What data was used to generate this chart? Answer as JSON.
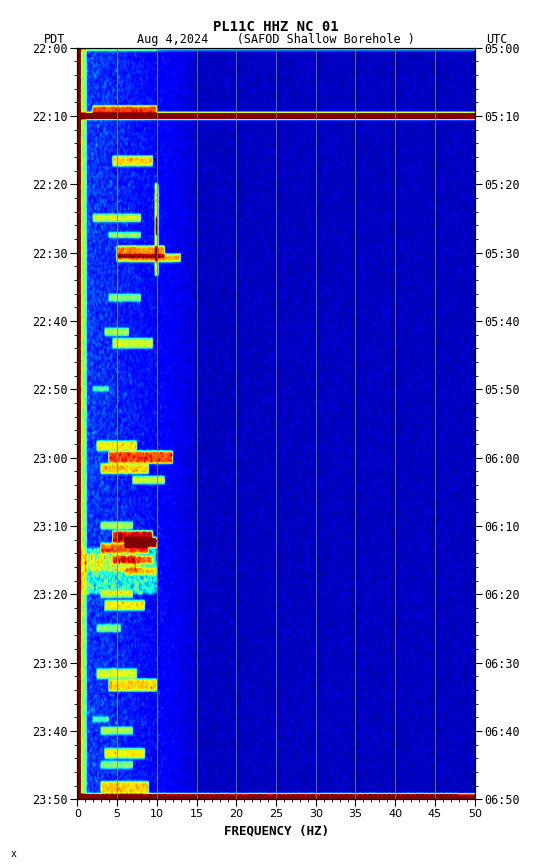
{
  "title_line1": "PL11C HHZ NC 01",
  "title_line2": "Aug 4,2024    (SAFOD Shallow Borehole )",
  "label_left": "PDT",
  "label_right": "UTC",
  "xlabel": "FREQUENCY (HZ)",
  "freq_min": 0,
  "freq_max": 50,
  "time_ticks_pdt": [
    "22:00",
    "22:10",
    "22:20",
    "22:30",
    "22:40",
    "22:50",
    "23:00",
    "23:10",
    "23:20",
    "23:30",
    "23:40",
    "23:50"
  ],
  "time_ticks_utc": [
    "05:00",
    "05:10",
    "05:20",
    "05:30",
    "05:40",
    "05:50",
    "06:00",
    "06:10",
    "06:20",
    "06:30",
    "06:40",
    "06:50"
  ],
  "vertical_lines_freq": [
    5,
    10,
    15,
    20,
    25,
    30,
    35,
    40,
    45
  ],
  "vline_color": "#888855",
  "colormap": "jet",
  "figsize": [
    5.52,
    8.64
  ],
  "dpi": 100,
  "bg_color": "#000090"
}
